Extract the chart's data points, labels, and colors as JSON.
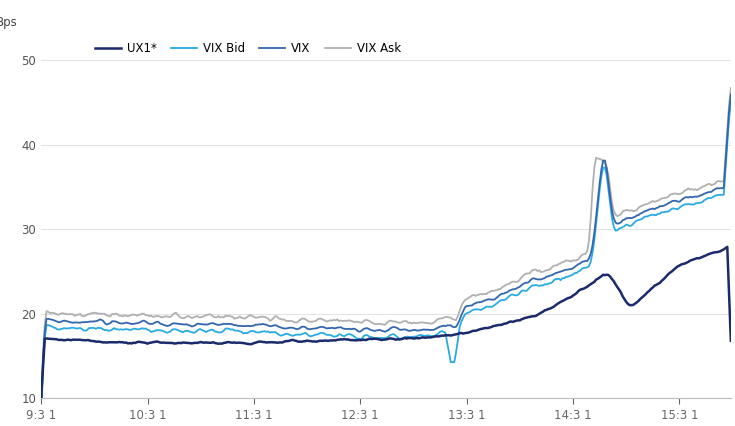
{
  "title": "Bps",
  "ylim": [
    10,
    52
  ],
  "yticks": [
    10,
    20,
    30,
    40,
    50
  ],
  "xtick_labels": [
    "9:3 1",
    "10:3 1",
    "11:3 1",
    "12:3 1",
    "13:3 1",
    "14:3 1",
    "15:3 1"
  ],
  "legend_labels": [
    "UX1*",
    "VIX Bid",
    "VIX",
    "VIX Ask"
  ],
  "colors": {
    "UX1": "#1b2a6b",
    "VIX_Bid": "#29abe2",
    "VIX": "#3466ae",
    "VIX_Ask": "#b0b0b0"
  },
  "background_color": "#ffffff"
}
